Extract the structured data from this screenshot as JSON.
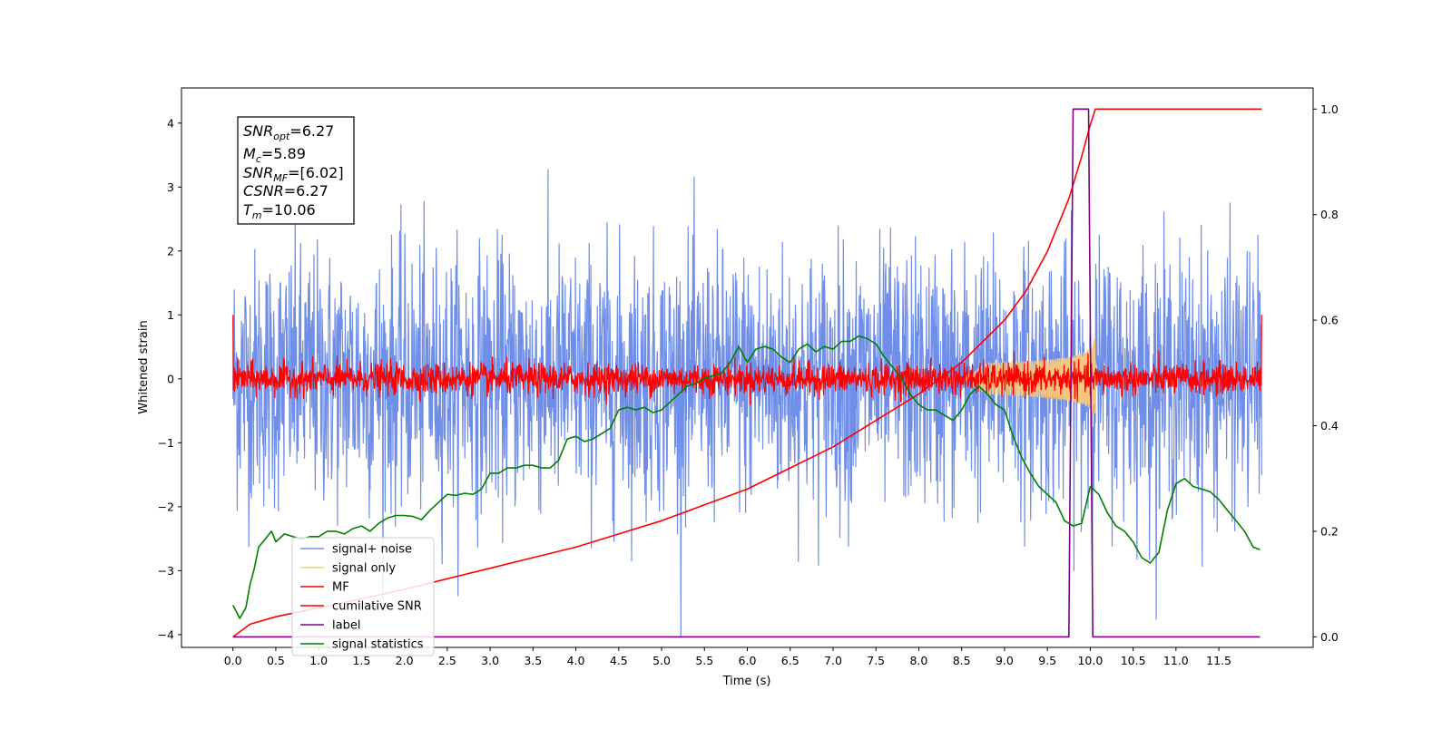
{
  "chart_data": {
    "type": "line",
    "xlabel": "Time (s)",
    "ylabel": "Whitened strain",
    "xlim": [
      -0.6,
      12.6
    ],
    "ylim": [
      -4.2,
      4.55
    ],
    "y2lim": [
      -0.02,
      1.04
    ],
    "xticks": [
      "0.0",
      "0.5",
      "1.0",
      "1.5",
      "2.0",
      "2.5",
      "3.0",
      "3.5",
      "4.0",
      "4.5",
      "5.0",
      "5.5",
      "6.0",
      "6.5",
      "7.0",
      "7.5",
      "8.0",
      "8.5",
      "9.0",
      "9.5",
      "10.0",
      "10.5",
      "11.0",
      "11.5"
    ],
    "yticks": [
      "4",
      "3",
      "2",
      "1",
      "0",
      "−1",
      "−2",
      "−3",
      "−4"
    ],
    "y2ticks": [
      "1.0",
      "0.8",
      "0.6",
      "0.4",
      "0.2",
      "0.0"
    ],
    "grid": false,
    "legend_position": "lower-left",
    "info_box": {
      "snr_opt": "=6.27",
      "mc": "=5.89",
      "snr_mf": "=[6.02]",
      "csnr": "=6.27",
      "tm": "=10.06"
    },
    "series": [
      {
        "name": "signal+ noise",
        "color": "#6f8ee8",
        "axis": "left",
        "style": "noise",
        "x_range": [
          0.0,
          12.0
        ],
        "approx_std": 1.0,
        "approx_peak": 4.2
      },
      {
        "name": "signal only",
        "color": "#f5c77e",
        "axis": "left",
        "style": "chirp",
        "x_range": [
          8.5,
          10.06
        ],
        "approx_peak_amplitude": 0.7
      },
      {
        "name": "MF",
        "color": "#ff0000",
        "axis": "left",
        "style": "noise",
        "x_range": [
          0.0,
          12.0
        ],
        "approx_std": 0.12,
        "approx_peak": 0.6,
        "edge_spikes": [
          1.0,
          1.0
        ]
      },
      {
        "name": "cumilative SNR",
        "color": "#ff0000",
        "axis": "right",
        "x": [
          0.0,
          0.2,
          0.5,
          1.0,
          1.5,
          2.0,
          2.5,
          3.0,
          3.5,
          4.0,
          4.5,
          5.0,
          5.5,
          6.0,
          6.5,
          7.0,
          7.5,
          8.0,
          8.5,
          9.0,
          9.25,
          9.5,
          9.75,
          9.9,
          10.0,
          10.06,
          12.0
        ],
        "y": [
          0.0,
          0.024,
          0.038,
          0.055,
          0.072,
          0.09,
          0.11,
          0.13,
          0.15,
          0.17,
          0.195,
          0.22,
          0.25,
          0.28,
          0.32,
          0.36,
          0.41,
          0.46,
          0.52,
          0.6,
          0.655,
          0.73,
          0.83,
          0.91,
          0.97,
          1.0,
          1.0
        ]
      },
      {
        "name": "label",
        "color": "#800080",
        "axis": "right",
        "x": [
          0.0,
          9.75,
          9.8,
          9.98,
          10.03,
          11.98
        ],
        "y": [
          0.0,
          0.0,
          1.0,
          1.0,
          0.0,
          0.0
        ]
      },
      {
        "name": "signal statistics",
        "color": "#008000",
        "axis": "right",
        "x": [
          0.0,
          0.08,
          0.15,
          0.2,
          0.25,
          0.3,
          0.4,
          0.45,
          0.5,
          0.6,
          0.7,
          0.8,
          0.9,
          1.0,
          1.1,
          1.2,
          1.3,
          1.4,
          1.5,
          1.6,
          1.7,
          1.8,
          1.9,
          2.0,
          2.1,
          2.2,
          2.3,
          2.4,
          2.5,
          2.6,
          2.7,
          2.8,
          2.9,
          3.0,
          3.1,
          3.2,
          3.3,
          3.4,
          3.5,
          3.6,
          3.7,
          3.8,
          3.9,
          4.0,
          4.1,
          4.2,
          4.3,
          4.4,
          4.5,
          4.6,
          4.7,
          4.8,
          4.9,
          5.0,
          5.1,
          5.2,
          5.3,
          5.4,
          5.5,
          5.6,
          5.7,
          5.8,
          5.9,
          6.0,
          6.1,
          6.2,
          6.3,
          6.4,
          6.5,
          6.6,
          6.7,
          6.8,
          6.9,
          7.0,
          7.1,
          7.2,
          7.3,
          7.4,
          7.5,
          7.6,
          7.7,
          7.8,
          7.9,
          8.0,
          8.1,
          8.2,
          8.3,
          8.4,
          8.5,
          8.6,
          8.7,
          8.8,
          8.9,
          9.0,
          9.1,
          9.2,
          9.3,
          9.4,
          9.5,
          9.6,
          9.7,
          9.8,
          9.9,
          10.0,
          10.1,
          10.2,
          10.3,
          10.4,
          10.5,
          10.6,
          10.7,
          10.8,
          10.9,
          11.0,
          11.1,
          11.2,
          11.3,
          11.4,
          11.5,
          11.6,
          11.7,
          11.8,
          11.9,
          11.98
        ],
        "y": [
          0.06,
          0.035,
          0.055,
          0.1,
          0.13,
          0.17,
          0.19,
          0.2,
          0.18,
          0.195,
          0.19,
          0.185,
          0.19,
          0.19,
          0.2,
          0.2,
          0.195,
          0.205,
          0.21,
          0.2,
          0.215,
          0.225,
          0.23,
          0.23,
          0.228,
          0.222,
          0.24,
          0.255,
          0.27,
          0.268,
          0.272,
          0.27,
          0.28,
          0.31,
          0.31,
          0.32,
          0.32,
          0.325,
          0.325,
          0.32,
          0.32,
          0.335,
          0.375,
          0.38,
          0.37,
          0.375,
          0.385,
          0.395,
          0.43,
          0.435,
          0.43,
          0.435,
          0.425,
          0.43,
          0.445,
          0.46,
          0.475,
          0.48,
          0.49,
          0.495,
          0.5,
          0.52,
          0.55,
          0.52,
          0.545,
          0.55,
          0.545,
          0.53,
          0.52,
          0.545,
          0.555,
          0.54,
          0.55,
          0.545,
          0.56,
          0.56,
          0.57,
          0.565,
          0.555,
          0.53,
          0.51,
          0.49,
          0.46,
          0.44,
          0.43,
          0.43,
          0.42,
          0.41,
          0.43,
          0.46,
          0.475,
          0.46,
          0.44,
          0.43,
          0.38,
          0.34,
          0.31,
          0.285,
          0.27,
          0.255,
          0.22,
          0.21,
          0.215,
          0.285,
          0.27,
          0.235,
          0.21,
          0.2,
          0.18,
          0.15,
          0.14,
          0.16,
          0.24,
          0.29,
          0.3,
          0.285,
          0.28,
          0.275,
          0.26,
          0.24,
          0.22,
          0.2,
          0.17,
          0.165
        ]
      }
    ]
  }
}
